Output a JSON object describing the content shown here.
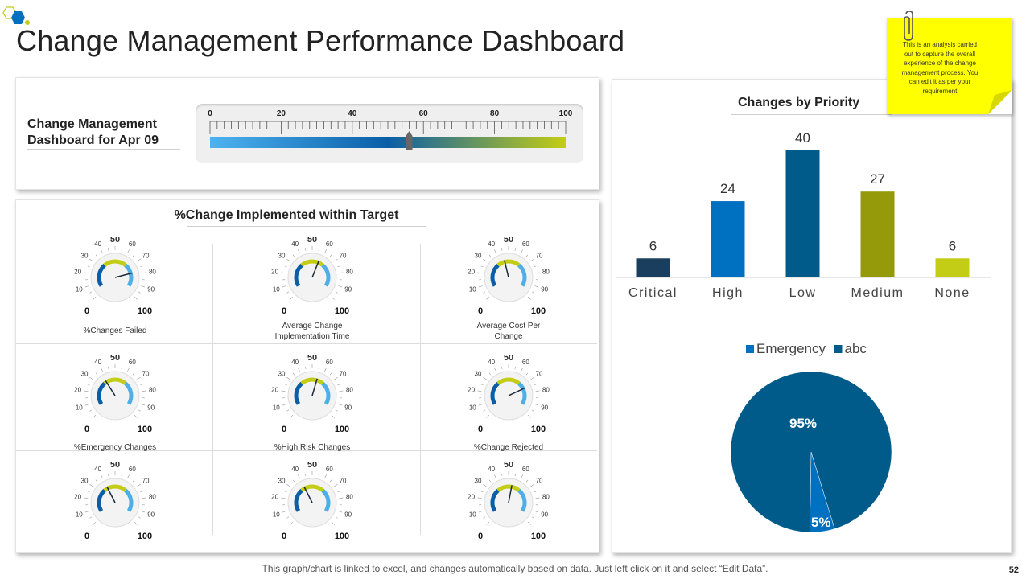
{
  "page": {
    "title": "Change Management Performance Dashboard",
    "footer": "This graph/chart is linked to excel, and changes automatically based on data. Just left click on it and select “Edit Data”.",
    "page_number": "52"
  },
  "note": {
    "text": "This is an analysis carried out to capture the overall experience of the change management process. You can edit it as per your requirement"
  },
  "dashboard": {
    "label": "Change Management Dashboard for Apr 09",
    "scale_ticks": [
      "0",
      "20",
      "40",
      "60",
      "80",
      "100"
    ],
    "scale_value": 56
  },
  "gauges_section": {
    "title": "%Change Implemented within Target",
    "scale_labels": [
      "10",
      "20",
      "30",
      "40",
      "50",
      "60",
      "70",
      "80",
      "90"
    ],
    "min_label": "0",
    "max_label": "100",
    "items": [
      {
        "caption": "%Changes Failed",
        "value": 78
      },
      {
        "caption": "Average Change Implementation  Time",
        "value": 58
      },
      {
        "caption": "Average Cost Per Change",
        "value": 45
      },
      {
        "caption": "%Emergency Changes",
        "value": 38
      },
      {
        "caption": "%High Risk Changes",
        "value": 56
      },
      {
        "caption": "%Change Rejected",
        "value": 74
      },
      {
        "caption": "",
        "value": 40
      },
      {
        "caption": "",
        "value": 40
      },
      {
        "caption": "",
        "value": 54
      }
    ]
  },
  "colors": {
    "navy": "#1a3e5e",
    "blue": "#0070c0",
    "steel": "#005b8a",
    "olive": "#949a0a",
    "lime": "#c4cd15",
    "light_blue": "#4daee8",
    "pie_main": "#005b8a",
    "pie_small": "#0070c0"
  },
  "chart_data": [
    {
      "type": "bar",
      "title": "Changes by Priority",
      "categories": [
        "Critical",
        "High",
        "Low",
        "Medium",
        "None"
      ],
      "values": [
        6,
        24,
        40,
        27,
        6
      ],
      "ylim": [
        0,
        45
      ],
      "xlabel": "",
      "ylabel": "",
      "grid": false
    },
    {
      "type": "pie",
      "title": "",
      "labels": [
        "Emergency",
        "abc"
      ],
      "values": [
        5,
        95
      ],
      "value_labels": [
        "5%",
        "95%"
      ],
      "legend": [
        "Emergency",
        "abc"
      ],
      "legend_position": "top"
    }
  ]
}
